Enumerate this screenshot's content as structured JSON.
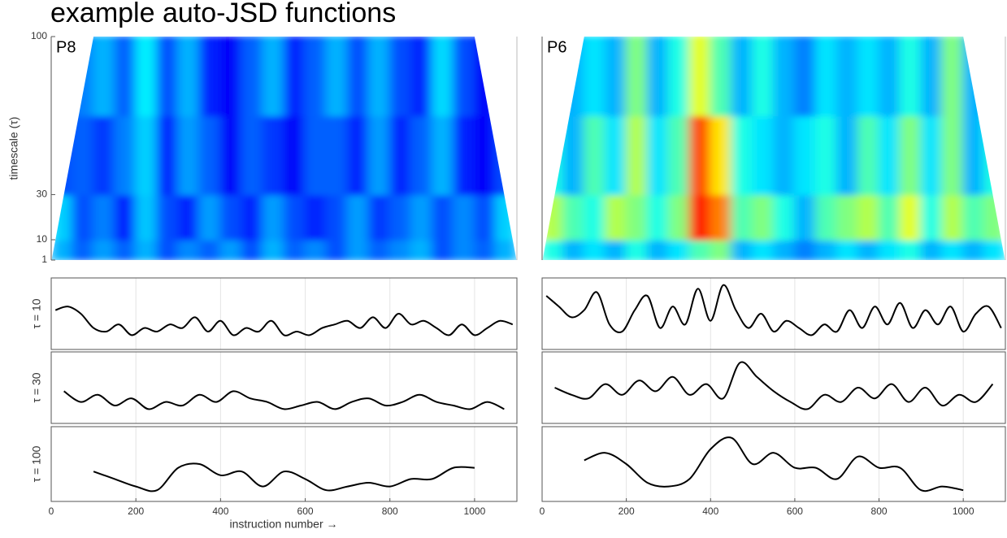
{
  "title": "example auto-JSD functions",
  "xlabel": "instruction number →",
  "chart_data": [
    {
      "type": "heatmap",
      "label": "P8",
      "ylabel": "timescale (τ)",
      "colormap": "jet",
      "clim": [
        0,
        1
      ],
      "xlim": [
        0,
        1100
      ],
      "ylim": [
        1,
        100
      ],
      "yticks": [
        1,
        10,
        30,
        100
      ],
      "x_bins": [
        0,
        50,
        100,
        150,
        200,
        250,
        300,
        350,
        400,
        450,
        500,
        550,
        600,
        650,
        700,
        750,
        800,
        850,
        900,
        950,
        1000,
        1050,
        1100
      ],
      "y_bins": [
        1,
        10,
        30,
        65,
        100
      ],
      "z": [
        [
          0.3,
          0.22,
          0.28,
          0.22,
          0.3,
          0.2,
          0.26,
          0.22,
          0.28,
          0.2,
          0.3,
          0.22,
          0.26,
          0.2,
          0.28,
          0.22,
          0.26,
          0.3,
          0.2,
          0.26,
          0.22,
          0.3
        ],
        [
          0.33,
          0.2,
          0.25,
          0.15,
          0.32,
          0.2,
          0.16,
          0.28,
          0.2,
          0.16,
          0.28,
          0.2,
          0.16,
          0.2,
          0.28,
          0.18,
          0.22,
          0.28,
          0.2,
          0.26,
          0.2,
          0.33
        ],
        [
          0.2,
          0.22,
          0.18,
          0.25,
          0.33,
          0.16,
          0.28,
          0.22,
          0.12,
          0.22,
          0.18,
          0.12,
          0.22,
          0.22,
          0.16,
          0.28,
          0.16,
          0.22,
          0.3,
          0.16,
          0.12,
          0.2
        ],
        [
          0.2,
          0.25,
          0.3,
          0.22,
          0.36,
          0.2,
          0.3,
          0.16,
          0.12,
          0.22,
          0.3,
          0.16,
          0.22,
          0.3,
          0.2,
          0.3,
          0.2,
          0.16,
          0.34,
          0.2,
          0.12,
          0.2
        ]
      ]
    },
    {
      "type": "heatmap",
      "label": "P6",
      "colormap": "jet",
      "clim": [
        0,
        1
      ],
      "xlim": [
        0,
        1100
      ],
      "ylim": [
        1,
        100
      ],
      "x_bins": [
        0,
        50,
        100,
        150,
        200,
        250,
        300,
        350,
        400,
        450,
        500,
        550,
        600,
        650,
        700,
        750,
        800,
        850,
        900,
        950,
        1000,
        1050,
        1100
      ],
      "y_bins": [
        1,
        10,
        30,
        65,
        100
      ],
      "z": [
        [
          0.4,
          0.3,
          0.35,
          0.3,
          0.4,
          0.3,
          0.35,
          0.45,
          0.5,
          0.3,
          0.35,
          0.3,
          0.25,
          0.3,
          0.35,
          0.3,
          0.35,
          0.4,
          0.3,
          0.35,
          0.3,
          0.35
        ],
        [
          0.55,
          0.45,
          0.4,
          0.55,
          0.5,
          0.4,
          0.5,
          0.85,
          0.75,
          0.45,
          0.5,
          0.4,
          0.3,
          0.45,
          0.5,
          0.55,
          0.45,
          0.6,
          0.4,
          0.55,
          0.45,
          0.5
        ],
        [
          0.4,
          0.3,
          0.45,
          0.35,
          0.55,
          0.35,
          0.45,
          0.8,
          0.65,
          0.4,
          0.35,
          0.3,
          0.35,
          0.4,
          0.3,
          0.45,
          0.35,
          0.5,
          0.35,
          0.5,
          0.3,
          0.4
        ],
        [
          0.3,
          0.3,
          0.35,
          0.3,
          0.5,
          0.3,
          0.4,
          0.6,
          0.45,
          0.3,
          0.4,
          0.3,
          0.25,
          0.35,
          0.3,
          0.35,
          0.3,
          0.4,
          0.3,
          0.5,
          0.3,
          0.3
        ]
      ]
    },
    {
      "type": "line",
      "ylabel": "τ = 10",
      "color": "#000000",
      "xlim": [
        0,
        1100
      ],
      "ylim": [
        0,
        1
      ],
      "xticks": [
        0,
        200,
        400,
        600,
        800,
        1000
      ],
      "grid": true,
      "x": [
        10,
        40,
        70,
        100,
        130,
        160,
        190,
        220,
        250,
        280,
        310,
        340,
        370,
        400,
        430,
        460,
        490,
        520,
        550,
        580,
        610,
        640,
        670,
        700,
        730,
        760,
        790,
        820,
        850,
        880,
        910,
        940,
        970,
        1000,
        1030,
        1060,
        1090
      ],
      "values": [
        0.55,
        0.6,
        0.5,
        0.3,
        0.25,
        0.35,
        0.2,
        0.3,
        0.25,
        0.35,
        0.3,
        0.45,
        0.25,
        0.4,
        0.2,
        0.3,
        0.25,
        0.4,
        0.2,
        0.25,
        0.2,
        0.3,
        0.35,
        0.4,
        0.3,
        0.45,
        0.3,
        0.5,
        0.35,
        0.4,
        0.3,
        0.2,
        0.35,
        0.2,
        0.3,
        0.4,
        0.35
      ]
    },
    {
      "type": "line",
      "ylabel": "τ = 30",
      "color": "#000000",
      "xlim": [
        0,
        1100
      ],
      "ylim": [
        0,
        1
      ],
      "xticks": [
        0,
        200,
        400,
        600,
        800,
        1000
      ],
      "grid": true,
      "x": [
        30,
        70,
        110,
        150,
        190,
        230,
        270,
        310,
        350,
        390,
        430,
        470,
        510,
        550,
        590,
        630,
        670,
        710,
        750,
        790,
        830,
        870,
        910,
        950,
        990,
        1030,
        1070
      ],
      "values": [
        0.45,
        0.3,
        0.4,
        0.25,
        0.35,
        0.2,
        0.3,
        0.25,
        0.4,
        0.3,
        0.45,
        0.35,
        0.3,
        0.2,
        0.25,
        0.3,
        0.2,
        0.3,
        0.35,
        0.25,
        0.3,
        0.4,
        0.3,
        0.25,
        0.2,
        0.3,
        0.2
      ]
    },
    {
      "type": "line",
      "ylabel": "τ = 100",
      "color": "#000000",
      "xlim": [
        0,
        1100
      ],
      "ylim": [
        0,
        1
      ],
      "xticks": [
        0,
        200,
        400,
        600,
        800,
        1000
      ],
      "grid": true,
      "xtick_labels": true,
      "x": [
        100,
        150,
        200,
        250,
        300,
        350,
        400,
        450,
        500,
        550,
        600,
        650,
        700,
        750,
        800,
        850,
        900,
        950,
        1000
      ],
      "values": [
        0.4,
        0.3,
        0.2,
        0.15,
        0.45,
        0.5,
        0.35,
        0.4,
        0.2,
        0.4,
        0.3,
        0.15,
        0.2,
        0.25,
        0.2,
        0.3,
        0.3,
        0.45,
        0.45
      ]
    },
    {
      "type": "line",
      "color": "#000000",
      "xlim": [
        0,
        1100
      ],
      "ylim": [
        0,
        1
      ],
      "xticks": [
        0,
        200,
        400,
        600,
        800,
        1000
      ],
      "grid": true,
      "x": [
        10,
        40,
        70,
        100,
        130,
        160,
        190,
        220,
        250,
        280,
        310,
        340,
        370,
        400,
        430,
        460,
        490,
        520,
        550,
        580,
        610,
        640,
        670,
        700,
        730,
        760,
        790,
        820,
        850,
        880,
        910,
        940,
        970,
        1000,
        1030,
        1060,
        1090
      ],
      "values": [
        0.75,
        0.6,
        0.45,
        0.55,
        0.8,
        0.35,
        0.25,
        0.55,
        0.75,
        0.3,
        0.6,
        0.35,
        0.85,
        0.4,
        0.9,
        0.55,
        0.3,
        0.5,
        0.25,
        0.4,
        0.3,
        0.2,
        0.35,
        0.25,
        0.55,
        0.3,
        0.6,
        0.35,
        0.65,
        0.3,
        0.55,
        0.35,
        0.6,
        0.25,
        0.5,
        0.6,
        0.3
      ]
    },
    {
      "type": "line",
      "color": "#000000",
      "xlim": [
        0,
        1100
      ],
      "ylim": [
        0,
        1
      ],
      "xticks": [
        0,
        200,
        400,
        600,
        800,
        1000
      ],
      "grid": true,
      "x": [
        30,
        70,
        110,
        150,
        190,
        230,
        270,
        310,
        350,
        390,
        430,
        470,
        510,
        550,
        590,
        630,
        670,
        710,
        750,
        790,
        830,
        870,
        910,
        950,
        990,
        1030,
        1070
      ],
      "values": [
        0.5,
        0.4,
        0.35,
        0.55,
        0.4,
        0.6,
        0.45,
        0.65,
        0.4,
        0.55,
        0.35,
        0.85,
        0.65,
        0.45,
        0.3,
        0.2,
        0.4,
        0.3,
        0.5,
        0.35,
        0.55,
        0.3,
        0.5,
        0.25,
        0.4,
        0.3,
        0.55
      ]
    },
    {
      "type": "line",
      "color": "#000000",
      "xlim": [
        0,
        1100
      ],
      "ylim": [
        0,
        1
      ],
      "xticks": [
        0,
        200,
        400,
        600,
        800,
        1000
      ],
      "grid": true,
      "xtick_labels": true,
      "x": [
        100,
        150,
        200,
        250,
        300,
        350,
        400,
        450,
        500,
        550,
        600,
        650,
        700,
        750,
        800,
        850,
        900,
        950,
        1000
      ],
      "values": [
        0.55,
        0.65,
        0.5,
        0.25,
        0.2,
        0.3,
        0.7,
        0.85,
        0.5,
        0.65,
        0.45,
        0.45,
        0.3,
        0.6,
        0.45,
        0.45,
        0.15,
        0.2,
        0.15
      ]
    }
  ]
}
